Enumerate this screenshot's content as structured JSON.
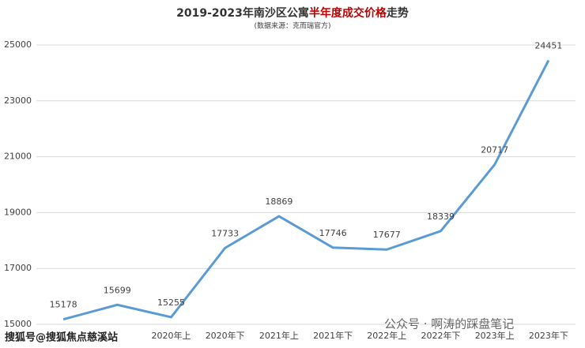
{
  "chart_data": {
    "type": "line",
    "title": [
      {
        "text": "2019-2023年南沙区公寓",
        "color": "#333333"
      },
      {
        "text": "半年度成交价格",
        "color": "#c00000"
      },
      {
        "text": "走势",
        "color": "#333333"
      }
    ],
    "subtitle": "(数据来源：克而瑞官方)",
    "categories": [
      null,
      null,
      "2020年上",
      "2020年下",
      "2021年上",
      "2021年下",
      "2022年上",
      "2022年下",
      "2023年上",
      "2023年下"
    ],
    "series": [
      {
        "name": "成交价格",
        "color": "#5b9bd5",
        "values": [
          15178,
          15699,
          15255,
          17733,
          18869,
          17746,
          17677,
          18339,
          20717,
          24451
        ]
      }
    ],
    "ylim": [
      15000,
      25000
    ],
    "yticks": [
      15000,
      17000,
      19000,
      21000,
      23000,
      25000
    ],
    "grid": true,
    "annotations": [
      "搜狐号@搜狐焦点慈溪站",
      "公众号 · 啊涛的踩盘笔记"
    ]
  }
}
